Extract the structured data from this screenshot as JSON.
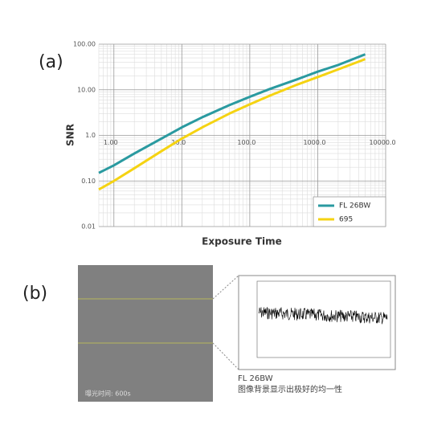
{
  "chart_data": {
    "type": "line",
    "xlabel": "Exposure Time",
    "ylabel": "SNR",
    "xscale": "log",
    "yscale": "log",
    "grid": true,
    "minor_grid": true,
    "legend": "lower right",
    "xlim": [
      0.6,
      10000
    ],
    "ylim": [
      0.01,
      100
    ],
    "xticks": [
      {
        "value": 1,
        "label": "1.00"
      },
      {
        "value": 10,
        "label": "10.0"
      },
      {
        "value": 100,
        "label": "100.0"
      },
      {
        "value": 1000,
        "label": "1000.0"
      },
      {
        "value": 10000,
        "label": "10000.0"
      }
    ],
    "yticks": [
      {
        "value": 0.01,
        "label": "0.01"
      },
      {
        "value": 0.1,
        "label": "0.10"
      },
      {
        "value": 1,
        "label": "1.0"
      },
      {
        "value": 10,
        "label": "10.00"
      },
      {
        "value": 100,
        "label": "100.00"
      }
    ],
    "x": [
      0.6,
      1,
      2,
      5,
      10,
      20,
      50,
      100,
      200,
      500,
      1000,
      2000,
      5000
    ],
    "series": [
      {
        "name": "FL 26BW",
        "color": "#2a9aa0",
        "values": [
          0.15,
          0.22,
          0.4,
          0.85,
          1.5,
          2.5,
          4.6,
          7,
          10.5,
          17,
          25,
          35,
          60
        ]
      },
      {
        "name": "695",
        "color": "#f5d312",
        "values": [
          0.065,
          0.1,
          0.19,
          0.45,
          0.85,
          1.5,
          3,
          4.8,
          7.5,
          13,
          19,
          28,
          47
        ]
      }
    ]
  },
  "panel_labels": [
    "(a)",
    "(b)"
  ],
  "panel_b": {
    "exposure_label": "曝光时间: 600s",
    "caption_title": "FL 26BW",
    "caption": "图像背景显示出极好的均一性"
  }
}
